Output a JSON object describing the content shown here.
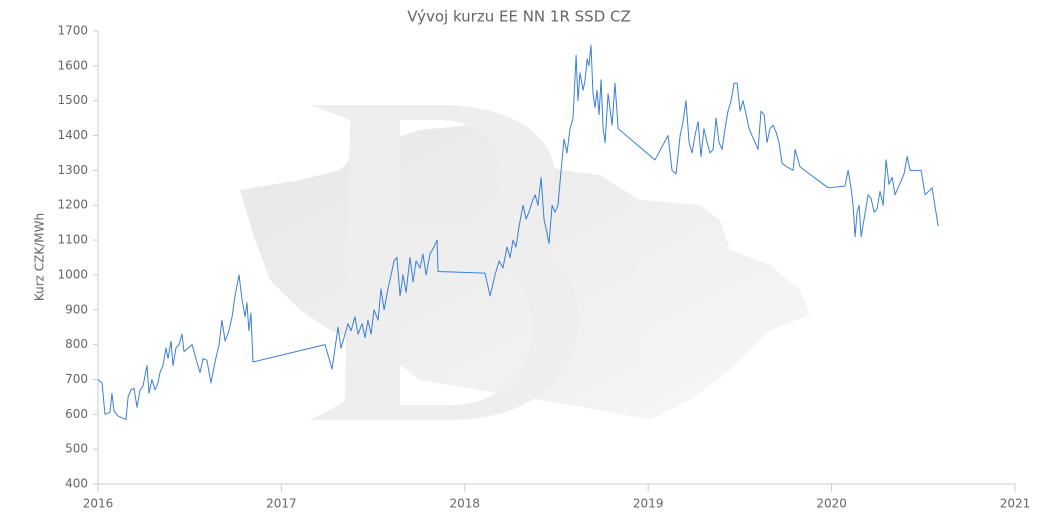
{
  "chart_data": {
    "type": "line",
    "title": "Vývoj kurzu EE NN 1R SSD CZ",
    "y_label": "Kurz CZK/MWh",
    "xlim": [
      2016,
      2021
    ],
    "xticks": [
      2016,
      2017,
      2018,
      2019,
      2020,
      2021
    ],
    "ylim": [
      400,
      1700
    ],
    "yticks": [
      400,
      500,
      600,
      700,
      800,
      900,
      1000,
      1100,
      1200,
      1300,
      1400,
      1500,
      1600,
      1700
    ],
    "grid": false,
    "x": [
      2016.0,
      2016.022,
      2016.038,
      2016.065,
      2016.076,
      2016.087,
      2016.109,
      2016.153,
      2016.164,
      2016.18,
      2016.196,
      2016.213,
      2016.229,
      2016.245,
      2016.267,
      2016.278,
      2016.294,
      2016.311,
      2016.327,
      2016.338,
      2016.354,
      2016.371,
      2016.382,
      2016.398,
      2016.409,
      2016.425,
      2016.442,
      2016.458,
      2016.469,
      2016.491,
      2016.513,
      2016.534,
      2016.556,
      2016.573,
      2016.594,
      2016.616,
      2016.638,
      2016.66,
      2016.676,
      2016.693,
      2016.714,
      2016.731,
      2016.747,
      2016.769,
      2016.785,
      2016.802,
      2016.812,
      2016.823,
      2016.834,
      2016.845,
      2017.238,
      2017.276,
      2017.309,
      2017.325,
      2017.347,
      2017.363,
      2017.38,
      2017.401,
      2017.418,
      2017.44,
      2017.456,
      2017.472,
      2017.489,
      2017.505,
      2017.527,
      2017.543,
      2017.56,
      2017.581,
      2017.598,
      2017.614,
      2017.63,
      2017.647,
      2017.663,
      2017.68,
      2017.701,
      2017.718,
      2017.734,
      2017.756,
      2017.772,
      2017.789,
      2017.81,
      2017.832,
      2017.849,
      2017.854,
      2018.11,
      2018.138,
      2018.165,
      2018.187,
      2018.208,
      2018.23,
      2018.247,
      2018.263,
      2018.279,
      2018.296,
      2018.318,
      2018.334,
      2018.35,
      2018.367,
      2018.383,
      2018.399,
      2018.416,
      2018.432,
      2018.448,
      2018.459,
      2018.476,
      2018.492,
      2018.508,
      2018.525,
      2018.541,
      2018.557,
      2018.574,
      2018.59,
      2018.607,
      2018.617,
      2018.628,
      2018.645,
      2018.656,
      2018.667,
      2018.677,
      2018.688,
      2018.699,
      2018.71,
      2018.721,
      2018.732,
      2018.743,
      2018.754,
      2018.765,
      2018.781,
      2018.803,
      2018.819,
      2018.836,
      2019.037,
      2019.108,
      2019.13,
      2019.152,
      2019.174,
      2019.19,
      2019.206,
      2019.223,
      2019.239,
      2019.255,
      2019.272,
      2019.288,
      2019.304,
      2019.321,
      2019.337,
      2019.354,
      2019.37,
      2019.386,
      2019.403,
      2019.419,
      2019.435,
      2019.452,
      2019.468,
      2019.485,
      2019.501,
      2019.517,
      2019.534,
      2019.55,
      2019.566,
      2019.583,
      2019.599,
      2019.615,
      2019.632,
      2019.648,
      2019.664,
      2019.681,
      2019.697,
      2019.713,
      2019.73,
      2019.757,
      2019.79,
      2019.801,
      2019.828,
      2019.981,
      2020.073,
      2020.09,
      2020.106,
      2020.117,
      2020.128,
      2020.139,
      2020.15,
      2020.161,
      2020.177,
      2020.199,
      2020.215,
      2020.232,
      2020.248,
      2020.264,
      2020.281,
      2020.297,
      2020.313,
      2020.33,
      2020.346,
      2020.362,
      2020.379,
      2020.395,
      2020.412,
      2020.428,
      2020.488,
      2020.51,
      2020.548,
      2020.581
    ],
    "series": [
      {
        "color": "#3a7fd5",
        "values": [
          700,
          690,
          600,
          605,
          660,
          610,
          595,
          585,
          650,
          670,
          675,
          620,
          670,
          680,
          740,
          660,
          700,
          670,
          690,
          720,
          740,
          790,
          760,
          810,
          740,
          790,
          800,
          830,
          780,
          790,
          800,
          760,
          720,
          760,
          755,
          690,
          750,
          800,
          870,
          810,
          840,
          880,
          940,
          1000,
          930,
          880,
          920,
          840,
          890,
          750,
          800,
          730,
          850,
          790,
          830,
          860,
          840,
          880,
          830,
          860,
          820,
          870,
          830,
          900,
          870,
          960,
          900,
          960,
          1000,
          1040,
          1050,
          940,
          1000,
          950,
          1050,
          980,
          1040,
          1020,
          1060,
          1000,
          1060,
          1080,
          1100,
          1010,
          1005,
          940,
          1000,
          1040,
          1020,
          1080,
          1050,
          1100,
          1080,
          1140,
          1200,
          1160,
          1180,
          1210,
          1230,
          1200,
          1280,
          1160,
          1120,
          1090,
          1200,
          1180,
          1200,
          1300,
          1390,
          1350,
          1420,
          1450,
          1630,
          1500,
          1580,
          1530,
          1560,
          1620,
          1600,
          1660,
          1520,
          1480,
          1530,
          1460,
          1560,
          1420,
          1380,
          1520,
          1430,
          1550,
          1420,
          1330,
          1400,
          1300,
          1290,
          1400,
          1440,
          1500,
          1380,
          1350,
          1400,
          1440,
          1340,
          1420,
          1380,
          1350,
          1360,
          1450,
          1380,
          1360,
          1420,
          1470,
          1500,
          1550,
          1550,
          1470,
          1500,
          1460,
          1420,
          1400,
          1380,
          1360,
          1470,
          1460,
          1380,
          1420,
          1430,
          1410,
          1380,
          1320,
          1310,
          1300,
          1360,
          1310,
          1250,
          1255,
          1300,
          1250,
          1200,
          1110,
          1180,
          1200,
          1110,
          1160,
          1230,
          1220,
          1180,
          1190,
          1240,
          1200,
          1330,
          1260,
          1280,
          1230,
          1250,
          1270,
          1290,
          1340,
          1300,
          1300,
          1230,
          1250,
          1140
        ]
      }
    ]
  }
}
